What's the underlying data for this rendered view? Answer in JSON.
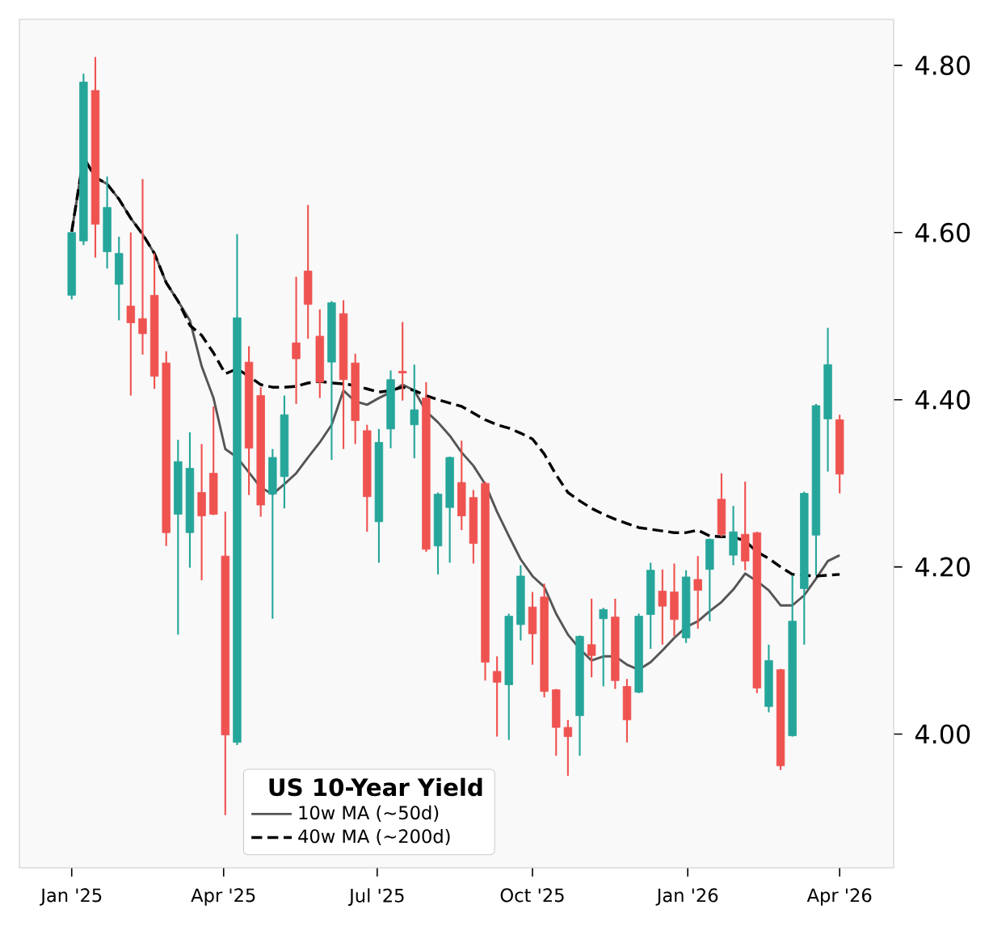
{
  "chart_data": {
    "type": "candlestick",
    "legend_title": "US 10-Year Yield",
    "x": [
      "2025-01-01",
      "2025-01-08",
      "2025-01-15",
      "2025-01-22",
      "2025-01-29",
      "2025-02-05",
      "2025-02-12",
      "2025-02-19",
      "2025-02-26",
      "2025-03-05",
      "2025-03-12",
      "2025-03-19",
      "2025-03-26",
      "2025-04-02",
      "2025-04-09",
      "2025-04-16",
      "2025-04-23",
      "2025-04-30",
      "2025-05-07",
      "2025-05-14",
      "2025-05-21",
      "2025-05-28",
      "2025-06-04",
      "2025-06-11",
      "2025-06-18",
      "2025-06-25",
      "2025-07-02",
      "2025-07-09",
      "2025-07-16",
      "2025-07-23",
      "2025-07-30",
      "2025-08-06",
      "2025-08-13",
      "2025-08-20",
      "2025-08-27",
      "2025-09-03",
      "2025-09-10",
      "2025-09-17",
      "2025-09-24",
      "2025-10-01",
      "2025-10-08",
      "2025-10-15",
      "2025-10-22",
      "2025-10-29",
      "2025-11-05",
      "2025-11-12",
      "2025-11-19",
      "2025-11-26",
      "2025-12-03",
      "2025-12-10",
      "2025-12-17",
      "2025-12-24",
      "2025-12-31",
      "2026-01-07",
      "2026-01-14",
      "2026-01-21",
      "2026-01-28",
      "2026-02-04",
      "2026-02-11",
      "2026-02-18",
      "2026-02-25",
      "2026-03-04",
      "2026-03-11",
      "2026-03-18",
      "2026-03-25",
      "2026-04-01"
    ],
    "ohlc": [
      [
        4.525,
        4.6,
        4.52,
        4.6
      ],
      [
        4.59,
        4.79,
        4.585,
        4.78
      ],
      [
        4.77,
        4.81,
        4.57,
        4.61
      ],
      [
        4.577,
        4.667,
        4.557,
        4.63
      ],
      [
        4.538,
        4.595,
        4.495,
        4.575
      ],
      [
        4.512,
        4.6,
        4.405,
        4.492
      ],
      [
        4.497,
        4.664,
        4.454,
        4.479
      ],
      [
        4.525,
        4.575,
        4.413,
        4.428
      ],
      [
        4.444,
        4.458,
        4.225,
        4.241
      ],
      [
        4.263,
        4.352,
        4.119,
        4.326
      ],
      [
        4.241,
        4.361,
        4.199,
        4.318
      ],
      [
        4.289,
        4.347,
        4.184,
        4.261
      ],
      [
        4.312,
        4.392,
        4.262,
        4.263
      ],
      [
        4.213,
        4.266,
        3.903,
        3.999
      ],
      [
        3.99,
        4.598,
        3.987,
        4.498
      ],
      [
        4.445,
        4.464,
        4.286,
        4.342
      ],
      [
        4.405,
        4.415,
        4.26,
        4.274
      ],
      [
        4.287,
        4.341,
        4.138,
        4.331
      ],
      [
        4.308,
        4.405,
        4.27,
        4.382
      ],
      [
        4.468,
        4.547,
        4.395,
        4.449
      ],
      [
        4.554,
        4.633,
        4.473,
        4.514
      ],
      [
        4.476,
        4.508,
        4.402,
        4.421
      ],
      [
        4.445,
        4.518,
        4.328,
        4.516
      ],
      [
        4.503,
        4.519,
        4.341,
        4.424
      ],
      [
        4.444,
        4.455,
        4.347,
        4.375
      ],
      [
        4.363,
        4.37,
        4.242,
        4.284
      ],
      [
        4.254,
        4.365,
        4.205,
        4.349
      ],
      [
        4.365,
        4.435,
        4.342,
        4.424
      ],
      [
        4.434,
        4.493,
        4.399,
        4.432
      ],
      [
        4.37,
        4.442,
        4.33,
        4.388
      ],
      [
        4.402,
        4.421,
        4.218,
        4.221
      ],
      [
        4.225,
        4.289,
        4.191,
        4.287
      ],
      [
        4.271,
        4.332,
        4.205,
        4.331
      ],
      [
        4.301,
        4.351,
        4.244,
        4.261
      ],
      [
        4.283,
        4.292,
        4.204,
        4.228
      ],
      [
        4.3,
        4.302,
        4.064,
        4.086
      ],
      [
        4.075,
        4.093,
        3.997,
        4.062
      ],
      [
        4.059,
        4.144,
        3.993,
        4.141
      ],
      [
        4.131,
        4.202,
        4.112,
        4.189
      ],
      [
        4.152,
        4.17,
        4.083,
        4.12
      ],
      [
        4.164,
        4.18,
        4.044,
        4.051
      ],
      [
        4.053,
        4.054,
        3.974,
        4.008
      ],
      [
        4.008,
        4.017,
        3.95,
        3.997
      ],
      [
        4.022,
        4.118,
        3.974,
        4.117
      ],
      [
        4.107,
        4.162,
        4.068,
        4.094
      ],
      [
        4.138,
        4.151,
        4.057,
        4.149
      ],
      [
        4.14,
        4.162,
        4.054,
        4.064
      ],
      [
        4.057,
        4.066,
        3.99,
        4.017
      ],
      [
        4.05,
        4.144,
        4.049,
        4.141
      ],
      [
        4.143,
        4.205,
        4.102,
        4.196
      ],
      [
        4.171,
        4.197,
        4.107,
        4.153
      ],
      [
        4.17,
        4.204,
        4.117,
        4.137
      ],
      [
        4.115,
        4.196,
        4.109,
        4.188
      ],
      [
        4.185,
        4.213,
        4.126,
        4.172
      ],
      [
        4.197,
        4.234,
        4.135,
        4.233
      ],
      [
        4.281,
        4.312,
        4.236,
        4.239
      ],
      [
        4.214,
        4.273,
        4.202,
        4.242
      ],
      [
        4.239,
        4.302,
        4.196,
        4.207
      ],
      [
        4.241,
        4.242,
        4.049,
        4.055
      ],
      [
        4.033,
        4.107,
        4.026,
        4.088
      ],
      [
        4.077,
        4.078,
        3.957,
        3.962
      ],
      [
        3.998,
        4.19,
        3.997,
        4.135
      ],
      [
        4.174,
        4.29,
        4.107,
        4.288
      ],
      [
        4.238,
        4.395,
        4.19,
        4.393
      ],
      [
        4.377,
        4.486,
        4.314,
        4.442
      ],
      [
        4.376,
        4.382,
        4.288,
        4.311
      ]
    ],
    "colors": [
      "#26a69a",
      "#26a69a",
      "#ef5350",
      "#26a69a",
      "#26a69a",
      "#ef5350",
      "#ef5350",
      "#ef5350",
      "#ef5350",
      "#26a69a",
      "#26a69a",
      "#ef5350",
      "#ef5350",
      "#ef5350",
      "#26a69a",
      "#ef5350",
      "#ef5350",
      "#26a69a",
      "#26a69a",
      "#ef5350",
      "#ef5350",
      "#ef5350",
      "#26a69a",
      "#ef5350",
      "#ef5350",
      "#ef5350",
      "#26a69a",
      "#26a69a",
      "#ef5350",
      "#26a69a",
      "#ef5350",
      "#26a69a",
      "#26a69a",
      "#ef5350",
      "#ef5350",
      "#ef5350",
      "#ef5350",
      "#26a69a",
      "#26a69a",
      "#ef5350",
      "#ef5350",
      "#ef5350",
      "#ef5350",
      "#26a69a",
      "#ef5350",
      "#26a69a",
      "#ef5350",
      "#ef5350",
      "#26a69a",
      "#26a69a",
      "#ef5350",
      "#ef5350",
      "#26a69a",
      "#ef5350",
      "#26a69a",
      "#ef5350",
      "#26a69a",
      "#ef5350",
      "#ef5350",
      "#26a69a",
      "#ef5350",
      "#26a69a",
      "#26a69a",
      "#26a69a",
      "#26a69a",
      "#ef5350"
    ],
    "series": [
      {
        "name": "10w MA (~50d)",
        "type": "line",
        "color": "#555555",
        "line_style": "solid",
        "values": [
          4.601,
          4.69,
          4.666,
          4.658,
          4.64,
          4.617,
          4.598,
          4.575,
          4.54,
          4.518,
          4.495,
          4.44,
          4.402,
          4.341,
          4.331,
          4.313,
          4.295,
          4.287,
          4.299,
          4.312,
          4.331,
          4.349,
          4.37,
          4.411,
          4.398,
          4.394,
          4.402,
          4.409,
          4.418,
          4.411,
          4.386,
          4.373,
          4.357,
          4.337,
          4.321,
          4.299,
          4.266,
          4.237,
          4.209,
          4.189,
          4.176,
          4.144,
          4.119,
          4.102,
          4.088,
          4.093,
          4.093,
          4.083,
          4.077,
          4.086,
          4.1,
          4.115,
          4.128,
          4.135,
          4.147,
          4.158,
          4.173,
          4.192,
          4.183,
          4.172,
          4.154,
          4.154,
          4.166,
          4.186,
          4.207,
          4.214
        ]
      },
      {
        "name": "40w MA (~200d)",
        "type": "line",
        "color": "#000000",
        "line_style": "dashed",
        "values": [
          4.601,
          4.69,
          4.666,
          4.658,
          4.64,
          4.617,
          4.598,
          4.575,
          4.54,
          4.518,
          4.489,
          4.477,
          4.456,
          4.431,
          4.437,
          4.428,
          4.418,
          4.415,
          4.415,
          4.416,
          4.42,
          4.422,
          4.42,
          4.419,
          4.417,
          4.413,
          4.409,
          4.411,
          4.415,
          4.411,
          4.405,
          4.4,
          4.396,
          4.392,
          4.384,
          4.376,
          4.37,
          4.366,
          4.36,
          4.353,
          4.335,
          4.31,
          4.289,
          4.279,
          4.27,
          4.263,
          4.257,
          4.252,
          4.247,
          4.245,
          4.243,
          4.241,
          4.241,
          4.244,
          4.237,
          4.236,
          4.236,
          4.231,
          4.218,
          4.21,
          4.2,
          4.191,
          4.19,
          4.189,
          4.19,
          4.191
        ]
      }
    ],
    "xlim": [
      "2024-12-01",
      "2026-05-03"
    ],
    "xticks": [
      {
        "value": "2025-01-01",
        "label": "Jan '25"
      },
      {
        "value": "2025-04-01",
        "label": "Apr '25"
      },
      {
        "value": "2025-07-01",
        "label": "Jul '25"
      },
      {
        "value": "2025-10-01",
        "label": "Oct '25"
      },
      {
        "value": "2026-01-01",
        "label": "Jan '26"
      },
      {
        "value": "2026-04-01",
        "label": "Apr '26"
      }
    ],
    "ylim": [
      3.84,
      4.855
    ],
    "yticks": [
      {
        "value": 4.0,
        "label": "4.00"
      },
      {
        "value": 4.2,
        "label": "4.20"
      },
      {
        "value": 4.4,
        "label": "4.40"
      },
      {
        "value": 4.6,
        "label": "4.60"
      },
      {
        "value": 4.8,
        "label": "4.80"
      }
    ],
    "legend": "bottom"
  }
}
